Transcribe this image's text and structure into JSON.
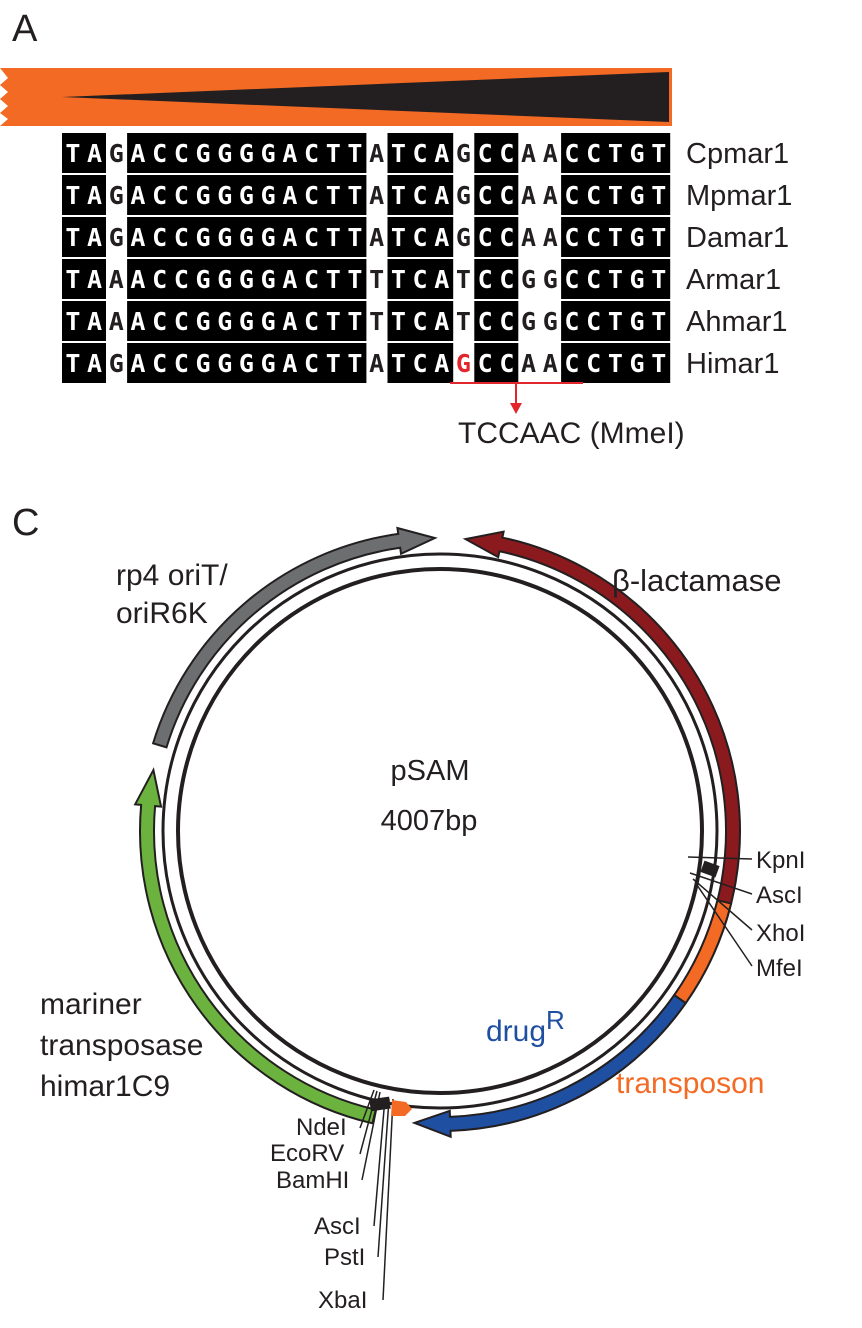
{
  "panels": {
    "a": "A",
    "c": "C"
  },
  "alignment": {
    "rows": [
      {
        "name": "Cpmar1",
        "seq": "TAGACCGGGGACTTATCAGCCAACCTGT"
      },
      {
        "name": "Mpmar1",
        "seq": "TAGACCGGGGACTTATCAGCCAACCTGT"
      },
      {
        "name": "Damar1",
        "seq": "TAGACCGGGGACTTATCAGCCAACCTGT"
      },
      {
        "name": "Armar1",
        "seq": "TAAACCGGGGACTTTTCATCCGGCCTGT"
      },
      {
        "name": "Ahmar1",
        "seq": "TAAACCGGGGACTTTTCATCCGGCCTGT"
      },
      {
        "name": "Himar1",
        "seq": "TAGACCGGGGACTTATCAGCCAACCTGT"
      }
    ],
    "unshaded_columns": [
      2,
      14,
      18,
      21,
      22
    ],
    "highlight": {
      "row": 5,
      "col": 18,
      "color": "#e3262c"
    },
    "site_label": "TCCAAC (MmeI)",
    "accent": "#e3262c",
    "gradient_color": "#f26a24"
  },
  "plasmid": {
    "name": "pSAM",
    "size": "4007bp",
    "features": [
      {
        "label": "β-lactamase",
        "color": "#8b1a1f"
      },
      {
        "label_lines": [
          "rp4 oriT/",
          "oriR6K"
        ],
        "color": "#6d6e70"
      },
      {
        "label_lines": [
          "mariner",
          "transposase",
          "himar1C9"
        ],
        "color": "#6bb33e"
      },
      {
        "label": "drug",
        "superscript": "R",
        "color": "#1f4fa0"
      },
      {
        "label": "transposon",
        "color": "#f26a24"
      }
    ],
    "sites_right": [
      "KpnI",
      "AscI",
      "XhoI",
      "MfeI"
    ],
    "sites_bottom_left": [
      "NdeI",
      "EcoRV",
      "BamHI"
    ],
    "sites_bottom": [
      "AscI",
      "PstI",
      "XbaI"
    ]
  }
}
